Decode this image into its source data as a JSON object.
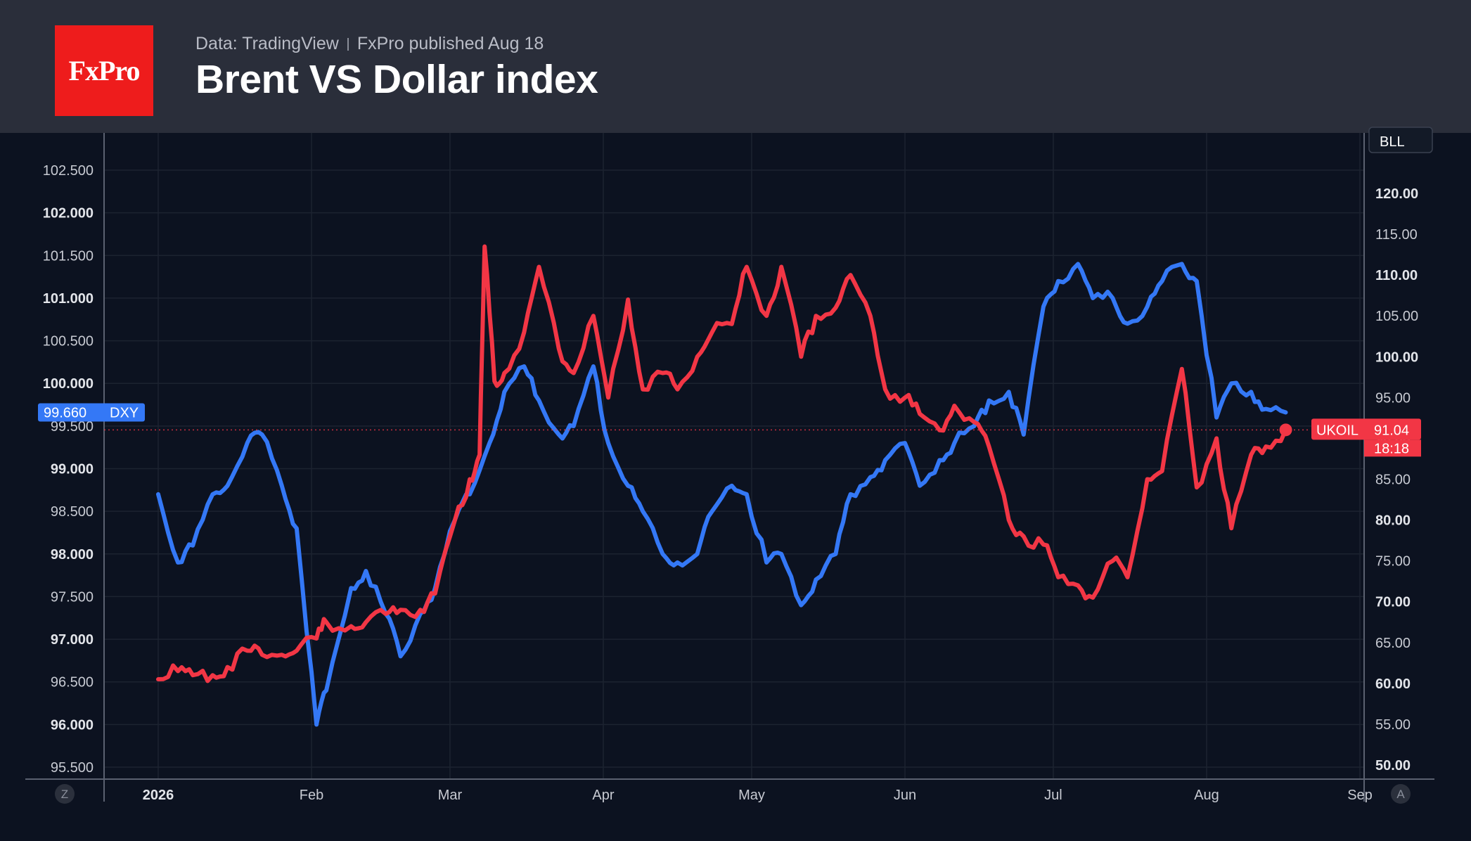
{
  "header": {
    "logo_text": "FxPro",
    "source": "Data: TradingView",
    "published": "FxPro published Aug 18",
    "title": "Brent VS Dollar index"
  },
  "colors": {
    "background": "#0c1220",
    "header_bg": "#2a2e3a",
    "logo_red": "#ee1c1c",
    "dxy_blue": "#3478f6",
    "ukoil_red": "#f23645",
    "grid": "#1c2330"
  },
  "chart_data": {
    "type": "line",
    "x_ticks": [
      "2026",
      "Feb",
      "Mar",
      "Apr",
      "May",
      "Jun",
      "Jul",
      "Aug",
      "Sep"
    ],
    "y_left": {
      "min": 95.5,
      "max": 102.5,
      "ticks": [
        {
          "label": "102.500",
          "value": 102.5,
          "bold": false
        },
        {
          "label": "102.000",
          "value": 102.0,
          "bold": true
        },
        {
          "label": "101.500",
          "value": 101.5,
          "bold": false
        },
        {
          "label": "101.000",
          "value": 101.0,
          "bold": true
        },
        {
          "label": "100.500",
          "value": 100.5,
          "bold": false
        },
        {
          "label": "100.000",
          "value": 100.0,
          "bold": true
        },
        {
          "label": "99.500",
          "value": 99.5,
          "bold": false
        },
        {
          "label": "99.000",
          "value": 99.0,
          "bold": true
        },
        {
          "label": "98.500",
          "value": 98.5,
          "bold": false
        },
        {
          "label": "98.000",
          "value": 98.0,
          "bold": true
        },
        {
          "label": "97.500",
          "value": 97.5,
          "bold": false
        },
        {
          "label": "97.000",
          "value": 97.0,
          "bold": true
        },
        {
          "label": "96.500",
          "value": 96.5,
          "bold": false
        },
        {
          "label": "96.000",
          "value": 96.0,
          "bold": true
        },
        {
          "label": "95.500",
          "value": 95.5,
          "bold": false
        }
      ]
    },
    "y_right": {
      "min": 50,
      "max": 120,
      "ticks": [
        {
          "label": "120.00",
          "value": 120,
          "bold": true
        },
        {
          "label": "115.00",
          "value": 115,
          "bold": false
        },
        {
          "label": "110.00",
          "value": 110,
          "bold": true
        },
        {
          "label": "105.00",
          "value": 105,
          "bold": false
        },
        {
          "label": "100.00",
          "value": 100,
          "bold": true
        },
        {
          "label": "95.00",
          "value": 95,
          "bold": false
        },
        {
          "label": "90.00",
          "value": 90,
          "bold": true
        },
        {
          "label": "85.00",
          "value": 85,
          "bold": false
        },
        {
          "label": "80.00",
          "value": 80,
          "bold": true
        },
        {
          "label": "75.00",
          "value": 75,
          "bold": false
        },
        {
          "label": "70.00",
          "value": 70,
          "bold": true
        },
        {
          "label": "65.00",
          "value": 65,
          "bold": false
        },
        {
          "label": "60.00",
          "value": 60,
          "bold": true
        },
        {
          "label": "55.00",
          "value": 55,
          "bold": false
        },
        {
          "label": "50.00",
          "value": 50,
          "bold": true
        }
      ]
    },
    "series": [
      {
        "name": "DXY",
        "axis": "left",
        "last_value_label": "99.660",
        "x": [
          "2026-01-01",
          "2026-01-05",
          "2026-01-08",
          "2026-01-12",
          "2026-01-15",
          "2026-01-19",
          "2026-01-22",
          "2026-01-26",
          "2026-01-29",
          "2026-02-02",
          "2026-02-04",
          "2026-02-09",
          "2026-02-12",
          "2026-02-16",
          "2026-02-19",
          "2026-02-23",
          "2026-02-26",
          "2026-03-02",
          "2026-03-05",
          "2026-03-09",
          "2026-03-12",
          "2026-03-16",
          "2026-03-19",
          "2026-03-23",
          "2026-03-26",
          "2026-03-30",
          "2026-04-02",
          "2026-04-06",
          "2026-04-09",
          "2026-04-13",
          "2026-04-16",
          "2026-04-20",
          "2026-04-23",
          "2026-04-27",
          "2026-04-30",
          "2026-05-04",
          "2026-05-07",
          "2026-05-11",
          "2026-05-14",
          "2026-05-18",
          "2026-05-21",
          "2026-05-25",
          "2026-05-28",
          "2026-06-01",
          "2026-06-04",
          "2026-06-08",
          "2026-06-11",
          "2026-06-15",
          "2026-06-18",
          "2026-06-22",
          "2026-06-25",
          "2026-06-29",
          "2026-07-02",
          "2026-07-06",
          "2026-07-09",
          "2026-07-13",
          "2026-07-16",
          "2026-07-20",
          "2026-07-23",
          "2026-07-27",
          "2026-07-30",
          "2026-08-03",
          "2026-08-06",
          "2026-08-10",
          "2026-08-13",
          "2026-08-17"
        ],
        "values": [
          98.7,
          97.9,
          98.1,
          98.7,
          98.8,
          99.3,
          99.4,
          98.8,
          98.3,
          96.0,
          96.4,
          97.6,
          97.8,
          97.3,
          96.8,
          97.3,
          97.6,
          98.4,
          98.7,
          99.3,
          99.9,
          100.2,
          99.8,
          99.4,
          99.5,
          100.2,
          99.3,
          98.8,
          98.5,
          98.0,
          97.9,
          98.0,
          98.5,
          98.8,
          98.7,
          97.9,
          98.0,
          97.4,
          97.7,
          98.0,
          98.7,
          98.9,
          99.1,
          99.3,
          98.8,
          99.1,
          99.3,
          99.5,
          99.8,
          99.9,
          99.4,
          100.9,
          101.2,
          101.4,
          101.0,
          101.0,
          100.7,
          100.9,
          101.2,
          101.4,
          101.2,
          99.6,
          100.0,
          99.9,
          99.7,
          99.66
        ]
      },
      {
        "name": "UKOIL",
        "axis": "right",
        "last_value_label": "91.04",
        "countdown": "18:18",
        "x": [
          "2026-01-01",
          "2026-01-05",
          "2026-01-08",
          "2026-01-12",
          "2026-01-15",
          "2026-01-19",
          "2026-01-22",
          "2026-01-26",
          "2026-01-29",
          "2026-02-02",
          "2026-02-04",
          "2026-02-09",
          "2026-02-12",
          "2026-02-16",
          "2026-02-19",
          "2026-02-23",
          "2026-02-26",
          "2026-03-02",
          "2026-03-05",
          "2026-03-07",
          "2026-03-08",
          "2026-03-10",
          "2026-03-12",
          "2026-03-16",
          "2026-03-19",
          "2026-03-23",
          "2026-03-26",
          "2026-03-30",
          "2026-04-02",
          "2026-04-06",
          "2026-04-09",
          "2026-04-13",
          "2026-04-16",
          "2026-04-20",
          "2026-04-23",
          "2026-04-27",
          "2026-04-30",
          "2026-05-04",
          "2026-05-07",
          "2026-05-11",
          "2026-05-14",
          "2026-05-18",
          "2026-05-21",
          "2026-05-25",
          "2026-05-28",
          "2026-06-01",
          "2026-06-04",
          "2026-06-08",
          "2026-06-11",
          "2026-06-15",
          "2026-06-18",
          "2026-06-22",
          "2026-06-25",
          "2026-06-29",
          "2026-07-02",
          "2026-07-06",
          "2026-07-09",
          "2026-07-13",
          "2026-07-16",
          "2026-07-20",
          "2026-07-23",
          "2026-07-27",
          "2026-07-30",
          "2026-08-03",
          "2026-08-06",
          "2026-08-10",
          "2026-08-13",
          "2026-08-17"
        ],
        "values": [
          60.5,
          61.5,
          61.0,
          61.0,
          62.0,
          64.0,
          63.5,
          63.5,
          64.0,
          65.5,
          67.5,
          67.0,
          67.5,
          68.5,
          69.0,
          69.0,
          71.0,
          80.0,
          85.0,
          88.0,
          113.5,
          97.0,
          98.0,
          103.0,
          111.0,
          101.0,
          98.0,
          105.0,
          95.0,
          107.0,
          96.0,
          98.0,
          96.0,
          100.0,
          103.0,
          104.0,
          111.0,
          105.0,
          111.0,
          100.0,
          105.0,
          106.0,
          110.0,
          105.0,
          96.0,
          95.0,
          93.0,
          91.0,
          94.0,
          92.0,
          89.0,
          80.0,
          78.0,
          77.0,
          73.0,
          72.0,
          70.5,
          75.0,
          73.0,
          85.0,
          86.0,
          98.5,
          84.0,
          90.0,
          79.0,
          88.0,
          89.0,
          91.04
        ]
      }
    ],
    "badges": {
      "right_top": "BLL",
      "z_button": "Z",
      "a_button": "A"
    }
  }
}
